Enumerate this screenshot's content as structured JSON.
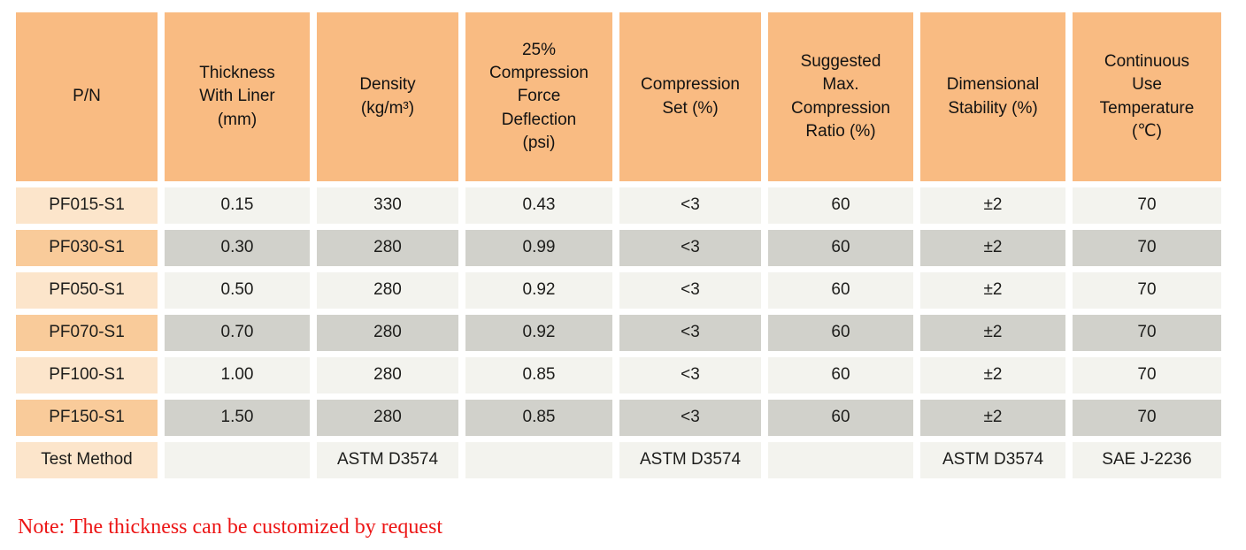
{
  "table": {
    "headers": [
      {
        "label": "P/N"
      },
      {
        "label": "Thickness\nWith Liner\n(mm)"
      },
      {
        "label": "Density\n(kg/m³)"
      },
      {
        "label": "25%\nCompression\nForce\nDeflection\n(psi)"
      },
      {
        "label": "Compression\nSet (%)"
      },
      {
        "label": "Suggested\nMax.\nCompression\nRatio (%)"
      },
      {
        "label": "Dimensional\nStability (%)"
      },
      {
        "label": "Continuous\nUse\nTemperature\n(℃)"
      }
    ],
    "rows": [
      {
        "pn": "PF015-S1",
        "values": [
          "0.15",
          "330",
          "0.43",
          "<3",
          "60",
          "±2",
          "70"
        ]
      },
      {
        "pn": "PF030-S1",
        "values": [
          "0.30",
          "280",
          "0.99",
          "<3",
          "60",
          "±2",
          "70"
        ]
      },
      {
        "pn": "PF050-S1",
        "values": [
          "0.50",
          "280",
          "0.92",
          "<3",
          "60",
          "±2",
          "70"
        ]
      },
      {
        "pn": "PF070-S1",
        "values": [
          "0.70",
          "280",
          "0.92",
          "<3",
          "60",
          "±2",
          "70"
        ]
      },
      {
        "pn": "PF100-S1",
        "values": [
          "1.00",
          "280",
          "0.85",
          "<3",
          "60",
          "±2",
          "70"
        ]
      },
      {
        "pn": "PF150-S1",
        "values": [
          "1.50",
          "280",
          "0.85",
          "<3",
          "60",
          "±2",
          "70"
        ]
      },
      {
        "pn": "Test Method",
        "values": [
          "",
          "ASTM D3574",
          "",
          "ASTM D3574",
          "",
          "ASTM D3574",
          "SAE J-2236"
        ]
      }
    ]
  },
  "note": {
    "text": "Note: The thickness can be customized by request"
  },
  "colors": {
    "header_bg": "#f9bb82",
    "pn_row_light": "#fce5cb",
    "pn_row_dark": "#f9cb9a",
    "data_row_light": "#f3f3ee",
    "data_row_dark": "#d1d1cb",
    "note_red": "#ec1515"
  }
}
